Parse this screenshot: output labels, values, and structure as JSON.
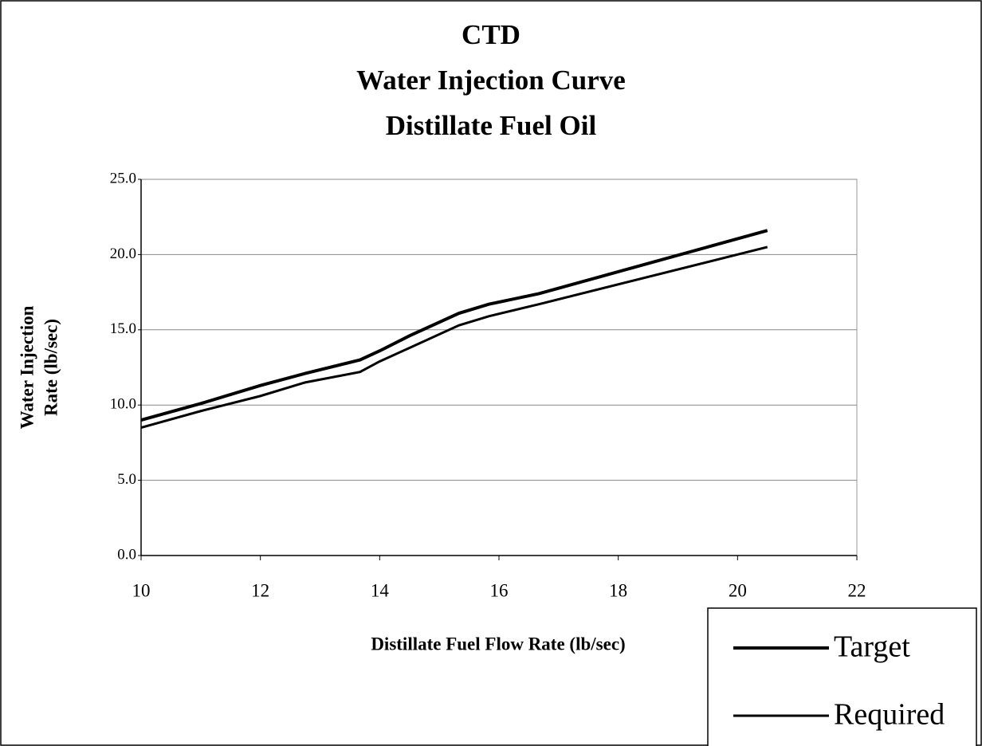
{
  "chart_data": {
    "type": "line",
    "title": [
      "CTD",
      "Water Injection Curve",
      "Distillate Fuel Oil"
    ],
    "xlabel": "Distillate Fuel Flow Rate (lb/sec)",
    "ylabel": [
      "Water Injection",
      "Rate (lb/sec)"
    ],
    "x": [
      10,
      11,
      12,
      12.75,
      13.67,
      14,
      14.5,
      15.33,
      15.83,
      16.67,
      20.5
    ],
    "series": [
      {
        "name": "Target",
        "color": "#000000",
        "width": 4,
        "values": [
          9.0,
          10.1,
          11.3,
          12.1,
          13.0,
          13.6,
          14.6,
          16.1,
          16.7,
          17.4,
          21.6
        ]
      },
      {
        "name": "Required",
        "color": "#000000",
        "width": 3,
        "values": [
          8.5,
          9.6,
          10.6,
          11.5,
          12.2,
          12.9,
          13.8,
          15.3,
          15.9,
          16.7,
          20.5
        ]
      }
    ],
    "xlim": [
      10,
      22
    ],
    "xticks": [
      10,
      12,
      14,
      16,
      18,
      20,
      22
    ],
    "ylim": [
      0,
      25
    ],
    "yticks": [
      {
        "value": 0,
        "label": "0.0"
      },
      {
        "value": 5,
        "label": "5.0"
      },
      {
        "value": 10,
        "label": "10.0"
      },
      {
        "value": 15,
        "label": "15.0"
      },
      {
        "value": 20,
        "label": "20.0"
      },
      {
        "value": 25,
        "label": "25.0"
      }
    ],
    "grid": true,
    "legend": "bottom-right"
  }
}
